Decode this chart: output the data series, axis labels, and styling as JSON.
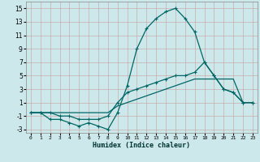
{
  "title": "",
  "xlabel": "Humidex (Indice chaleur)",
  "background_color": "#cce8ea",
  "grid_color": "#aaaaaa",
  "line_color": "#006666",
  "xlim": [
    -0.5,
    23.5
  ],
  "ylim": [
    -3.5,
    16.0
  ],
  "xticks": [
    0,
    1,
    2,
    3,
    4,
    5,
    6,
    7,
    8,
    9,
    10,
    11,
    12,
    13,
    14,
    15,
    16,
    17,
    18,
    19,
    20,
    21,
    22,
    23
  ],
  "yticks": [
    -3,
    -1,
    1,
    3,
    5,
    7,
    9,
    11,
    13,
    15
  ],
  "x_values": [
    0,
    1,
    2,
    3,
    4,
    5,
    6,
    7,
    8,
    9,
    10,
    11,
    12,
    13,
    14,
    15,
    16,
    17,
    18,
    19,
    20,
    21,
    22,
    23
  ],
  "line1": [
    -0.5,
    -0.5,
    -1.5,
    -1.5,
    -2.0,
    -2.5,
    -2.0,
    -2.5,
    -3.0,
    -0.5,
    3.5,
    9.0,
    12.0,
    13.5,
    14.5,
    15.0,
    13.5,
    11.5,
    7.0,
    5.0,
    3.0,
    2.5,
    1.0,
    1.0
  ],
  "line2": [
    -0.5,
    -0.5,
    -0.5,
    -1.0,
    -1.0,
    -1.5,
    -1.5,
    -1.5,
    -1.0,
    1.0,
    2.5,
    3.0,
    3.5,
    4.0,
    4.5,
    5.0,
    5.0,
    5.5,
    7.0,
    5.0,
    3.0,
    2.5,
    1.0,
    1.0
  ],
  "line3": [
    -0.5,
    -0.5,
    -0.5,
    -0.5,
    -0.5,
    -0.5,
    -0.5,
    -0.5,
    -0.5,
    0.5,
    1.0,
    1.5,
    2.0,
    2.5,
    3.0,
    3.5,
    4.0,
    4.5,
    4.5,
    4.5,
    4.5,
    4.5,
    1.0,
    1.0
  ]
}
